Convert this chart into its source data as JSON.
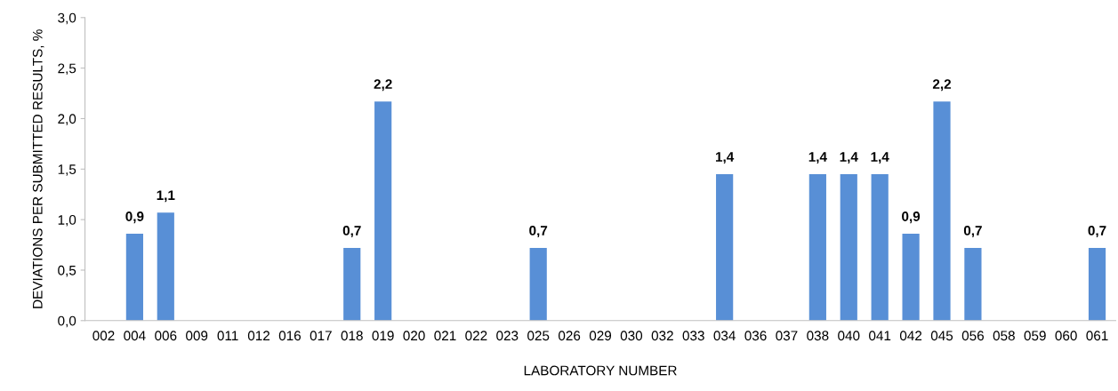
{
  "chart_data": {
    "type": "bar",
    "xlabel": "LABORATORY NUMBER",
    "ylabel": "DEVIATIONS PER SUBMITTED RESULTS, %",
    "categories": [
      "002",
      "004",
      "006",
      "009",
      "011",
      "012",
      "016",
      "017",
      "018",
      "019",
      "020",
      "021",
      "022",
      "023",
      "025",
      "026",
      "029",
      "030",
      "032",
      "033",
      "034",
      "036",
      "037",
      "038",
      "040",
      "041",
      "042",
      "045",
      "056",
      "058",
      "059",
      "060",
      "061"
    ],
    "values": [
      0,
      0.86,
      1.07,
      0,
      0,
      0,
      0,
      0,
      0.72,
      2.17,
      0,
      0,
      0,
      0,
      0.72,
      0,
      0,
      0,
      0,
      0,
      1.45,
      0,
      0,
      1.45,
      1.45,
      1.45,
      0.86,
      2.17,
      0.72,
      0,
      0,
      0,
      0.72
    ],
    "value_labels": [
      null,
      "0,9",
      "1,1",
      null,
      null,
      null,
      null,
      null,
      "0,7",
      "2,2",
      null,
      null,
      null,
      null,
      "0,7",
      null,
      null,
      null,
      null,
      null,
      "1,4",
      null,
      null,
      "1,4",
      "1,4",
      "1,4",
      "0,9",
      "2,2",
      "0,7",
      null,
      null,
      null,
      "0,7"
    ],
    "color": "#588fd6",
    "ylim": [
      0,
      3.0
    ],
    "yticks": [
      {
        "value": 0,
        "label": "0,0"
      },
      {
        "value": 0.5,
        "label": "0,5"
      },
      {
        "value": 1.0,
        "label": "1,0"
      },
      {
        "value": 1.5,
        "label": "1,5"
      },
      {
        "value": 2.0,
        "label": "2,0"
      },
      {
        "value": 2.5,
        "label": "2,5"
      },
      {
        "value": 3.0,
        "label": "3,0"
      }
    ],
    "grid": false
  }
}
